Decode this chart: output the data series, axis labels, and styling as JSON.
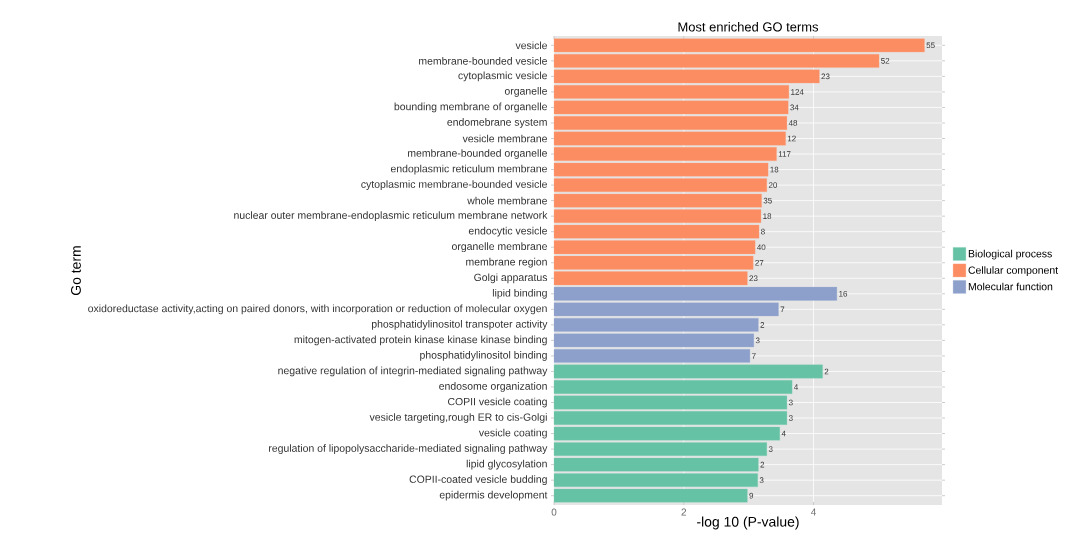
{
  "chart_data": {
    "type": "bar",
    "orientation": "horizontal",
    "title": "Most enriched GO terms",
    "xlabel": "-log 10 (P-value)",
    "ylabel": "Go term",
    "categories": [
      "vesicle",
      "membrane-bounded vesicle",
      "cytoplasmic vesicle",
      "organelle",
      "bounding membrane of organelle",
      "endomebrane system",
      "vesicle membrane",
      "membrane-bounded organelle",
      "endoplasmic reticulum membrane",
      "cytoplasmic membrane-bounded vesicle",
      "whole membrane",
      "nuclear outer membrane-endoplasmic reticulum membrane network",
      "endocytic vesicle",
      "organelle membrane",
      "membrane region",
      "Golgi apparatus",
      "lipid binding",
      "oxidoreductase activity,acting on paired donors, with incorporation or reduction of molecular oxygen",
      "phosphatidylinositol transpoter activity",
      "mitogen-activated protein kinase kinase kinase binding",
      "phosphatidylinositol binding",
      "negative regulation of integrin-mediated signaling pathway",
      "endosome organization",
      "COPII vesicle coating",
      "vesicle targeting,rough ER to cis-Golgi",
      "vesicle coating",
      "regulation of lipopolysaccharide-mediated signaling pathway",
      "lipid glycosylation",
      "COPII-coated vesicle budding",
      "epidermis development"
    ],
    "series": [
      {
        "name": "Biological process",
        "color": "#66c2a5",
        "values": [
          null,
          null,
          null,
          null,
          null,
          null,
          null,
          null,
          null,
          null,
          null,
          null,
          null,
          null,
          null,
          null,
          null,
          null,
          null,
          null,
          null,
          4.14,
          3.67,
          3.59,
          3.59,
          3.48,
          3.28,
          3.15,
          3.14,
          2.98
        ]
      },
      {
        "name": "Cellular component",
        "color": "#fc8d62",
        "values": [
          5.71,
          5.01,
          4.09,
          3.62,
          3.61,
          3.59,
          3.57,
          3.43,
          3.3,
          3.28,
          3.2,
          3.19,
          3.16,
          3.1,
          3.07,
          2.98,
          null,
          null,
          null,
          null,
          null,
          null,
          null,
          null,
          null,
          null,
          null,
          null,
          null,
          null
        ]
      },
      {
        "name": "Molecular function",
        "color": "#8da0cb",
        "values": [
          null,
          null,
          null,
          null,
          null,
          null,
          null,
          null,
          null,
          null,
          null,
          null,
          null,
          null,
          null,
          null,
          4.36,
          3.46,
          3.15,
          3.08,
          3.02,
          null,
          null,
          null,
          null,
          null,
          null,
          null,
          null,
          null
        ]
      }
    ],
    "annotations": [
      {
        "text": "55",
        "x": 5.71,
        "y": "vesicle"
      },
      {
        "text": "52",
        "x": 5.01,
        "y": "membrane-bounded vesicle"
      },
      {
        "text": "23",
        "x": 4.09,
        "y": "cytoplasmic vesicle"
      },
      {
        "text": "124",
        "x": 3.62,
        "y": "organelle"
      },
      {
        "text": "34",
        "x": 3.61,
        "y": "bounding membrane of organelle"
      },
      {
        "text": "48",
        "x": 3.59,
        "y": "endomebrane system"
      },
      {
        "text": "12",
        "x": 3.57,
        "y": "vesicle membrane"
      },
      {
        "text": "117",
        "x": 3.43,
        "y": "membrane-bounded organelle"
      },
      {
        "text": "18",
        "x": 3.3,
        "y": "endoplasmic reticulum membrane"
      },
      {
        "text": "20",
        "x": 3.28,
        "y": "cytoplasmic membrane-bounded vesicle"
      },
      {
        "text": "35",
        "x": 3.2,
        "y": "whole membrane"
      },
      {
        "text": "18",
        "x": 3.19,
        "y": "nuclear outer membrane-endoplasmic reticulum membrane network"
      },
      {
        "text": "8",
        "x": 3.16,
        "y": "endocytic vesicle"
      },
      {
        "text": "40",
        "x": 3.1,
        "y": "organelle membrane"
      },
      {
        "text": "27",
        "x": 3.07,
        "y": "membrane region"
      },
      {
        "text": "23",
        "x": 2.98,
        "y": "Golgi apparatus"
      },
      {
        "text": "16",
        "x": 4.36,
        "y": "lipid binding"
      },
      {
        "text": "7",
        "x": 3.46,
        "y": "oxidoreductase activity,acting on paired donors, with incorporation or reduction of molecular oxygen"
      },
      {
        "text": "2",
        "x": 3.15,
        "y": "phosphatidylinositol transpoter activity"
      },
      {
        "text": "3",
        "x": 3.08,
        "y": "mitogen-activated protein kinase kinase kinase binding"
      },
      {
        "text": "7",
        "x": 3.02,
        "y": "phosphatidylinositol binding"
      },
      {
        "text": "2",
        "x": 4.14,
        "y": "negative regulation of integrin-mediated signaling pathway"
      },
      {
        "text": "4",
        "x": 3.67,
        "y": "endosome organization"
      },
      {
        "text": "3",
        "x": 3.59,
        "y": "COPII vesicle coating"
      },
      {
        "text": "3",
        "x": 3.59,
        "y": "vesicle targeting,rough ER to cis-Golgi"
      },
      {
        "text": "4",
        "x": 3.48,
        "y": "vesicle coating"
      },
      {
        "text": "3",
        "x": 3.28,
        "y": "regulation of lipopolysaccharide-mediated signaling pathway"
      },
      {
        "text": "2",
        "x": 3.15,
        "y": "lipid glycosylation"
      },
      {
        "text": "3",
        "x": 3.14,
        "y": "COPII-coated vesicle budding"
      },
      {
        "text": "9",
        "x": 2.98,
        "y": "epidermis development"
      }
    ],
    "xlim": [
      0,
      5.98
    ],
    "xticks": [
      0,
      2,
      4
    ],
    "grid": true,
    "legend": "right"
  }
}
